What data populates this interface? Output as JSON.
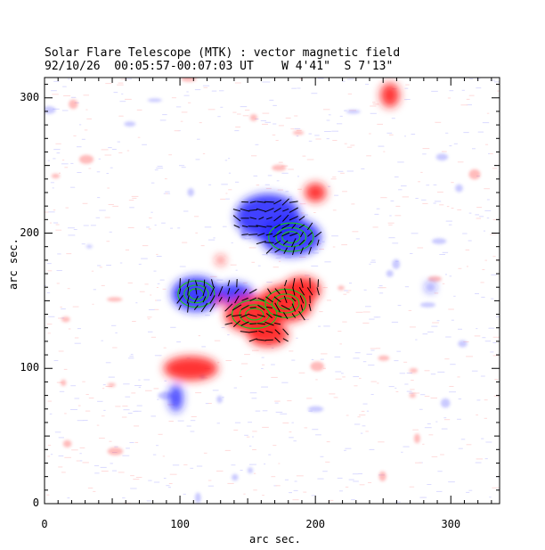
{
  "chart_data": {
    "type": "heatmap",
    "title": "Solar Flare Telescope (MTK) : vector magnetic field",
    "subtitle": "92/10/26  00:05:57-00:07:03 UT    W 4'41\"  S 7'13\"",
    "xlabel": "arc sec.",
    "ylabel": "arc sec.",
    "xlim": [
      0,
      336
    ],
    "ylim": [
      0,
      315
    ],
    "xticks": [
      0,
      100,
      200,
      300
    ],
    "yticks": [
      0,
      100,
      200,
      300
    ],
    "colors": {
      "positive": "#ff2020",
      "negative": "#2020ff",
      "contour": "#20c020",
      "vector": "#000000"
    },
    "positive_polarity_regions": [
      {
        "cx": 155,
        "cy": 140,
        "rx": 22,
        "ry": 14
      },
      {
        "cx": 178,
        "cy": 148,
        "rx": 20,
        "ry": 14
      },
      {
        "cx": 190,
        "cy": 158,
        "rx": 14,
        "ry": 10
      },
      {
        "cx": 165,
        "cy": 125,
        "rx": 15,
        "ry": 9
      },
      {
        "cx": 108,
        "cy": 100,
        "rx": 20,
        "ry": 9
      },
      {
        "cx": 255,
        "cy": 302,
        "rx": 7,
        "ry": 9
      },
      {
        "cx": 200,
        "cy": 230,
        "rx": 8,
        "ry": 7
      },
      {
        "cx": 130,
        "cy": 150,
        "rx": 4,
        "ry": 3
      },
      {
        "cx": 130,
        "cy": 180,
        "rx": 3,
        "ry": 3
      }
    ],
    "negative_polarity_regions": [
      {
        "cx": 165,
        "cy": 212,
        "rx": 24,
        "ry": 17
      },
      {
        "cx": 182,
        "cy": 197,
        "rx": 22,
        "ry": 14
      },
      {
        "cx": 112,
        "cy": 155,
        "rx": 18,
        "ry": 13
      },
      {
        "cx": 140,
        "cy": 155,
        "rx": 14,
        "ry": 8
      },
      {
        "cx": 97,
        "cy": 78,
        "rx": 5,
        "ry": 10
      },
      {
        "cx": 285,
        "cy": 160,
        "rx": 3,
        "ry": 3
      }
    ]
  }
}
